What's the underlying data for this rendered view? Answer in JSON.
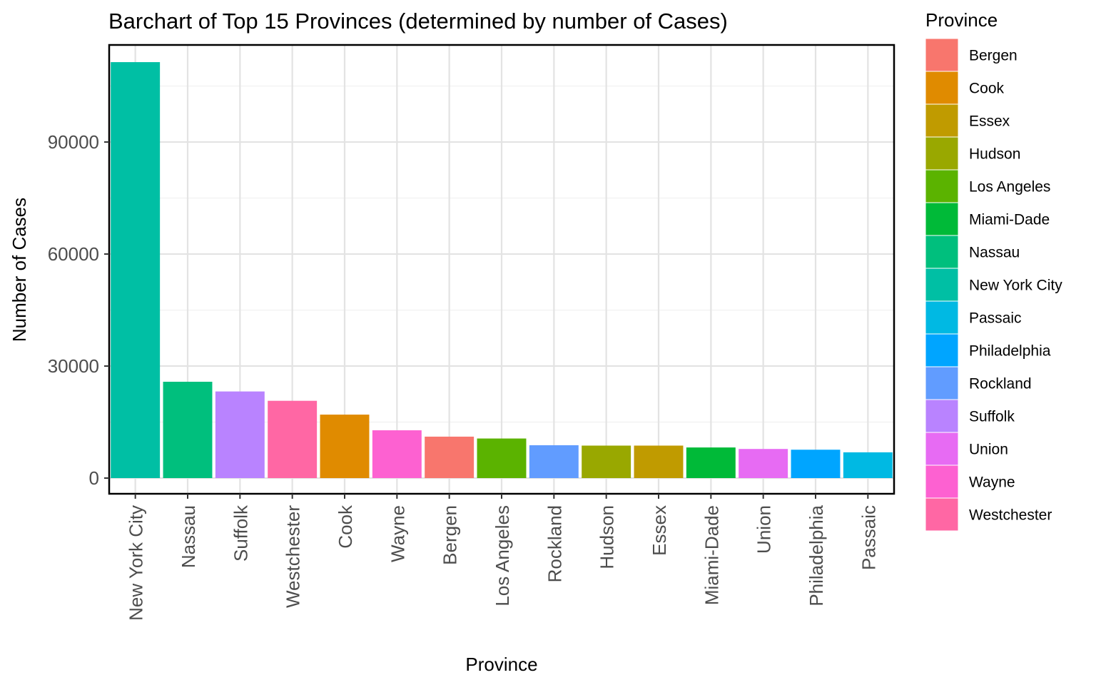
{
  "chart_data": {
    "type": "bar",
    "title": "Barchart of Top 15 Provinces (determined by number of Cases)",
    "xlabel": "Province",
    "ylabel": "Number of Cases",
    "ylim": [
      -4200,
      116000
    ],
    "yticks": [
      0,
      30000,
      60000,
      90000
    ],
    "grid": true,
    "legend_position": "right",
    "legend_title": "Province",
    "categories": [
      "New York City",
      "Nassau",
      "Suffolk",
      "Westchester",
      "Cook",
      "Wayne",
      "Bergen",
      "Los Angeles",
      "Rockland",
      "Hudson",
      "Essex",
      "Miami-Dade",
      "Union",
      "Philadelphia",
      "Passaic"
    ],
    "values": [
      111400,
      25800,
      23200,
      20700,
      17000,
      12800,
      11100,
      10600,
      8800,
      8700,
      8700,
      8200,
      7800,
      7600,
      6900
    ],
    "colors": {
      "Bergen": "#F8766D",
      "Cook": "#E08B00",
      "Essex": "#C09B00",
      "Hudson": "#99A800",
      "Los Angeles": "#5BB300",
      "Miami-Dade": "#00BA38",
      "Nassau": "#00BF7D",
      "New York City": "#00BFA4",
      "Passaic": "#00B9E3",
      "Philadelphia": "#00A5FF",
      "Rockland": "#619CFF",
      "Suffolk": "#B983FF",
      "Union": "#E76BF3",
      "Wayne": "#FD61D1",
      "Westchester": "#FF67A4"
    },
    "legend_entries": [
      "Bergen",
      "Cook",
      "Essex",
      "Hudson",
      "Los Angeles",
      "Miami-Dade",
      "Nassau",
      "New York City",
      "Passaic",
      "Philadelphia",
      "Rockland",
      "Suffolk",
      "Union",
      "Wayne",
      "Westchester"
    ]
  }
}
